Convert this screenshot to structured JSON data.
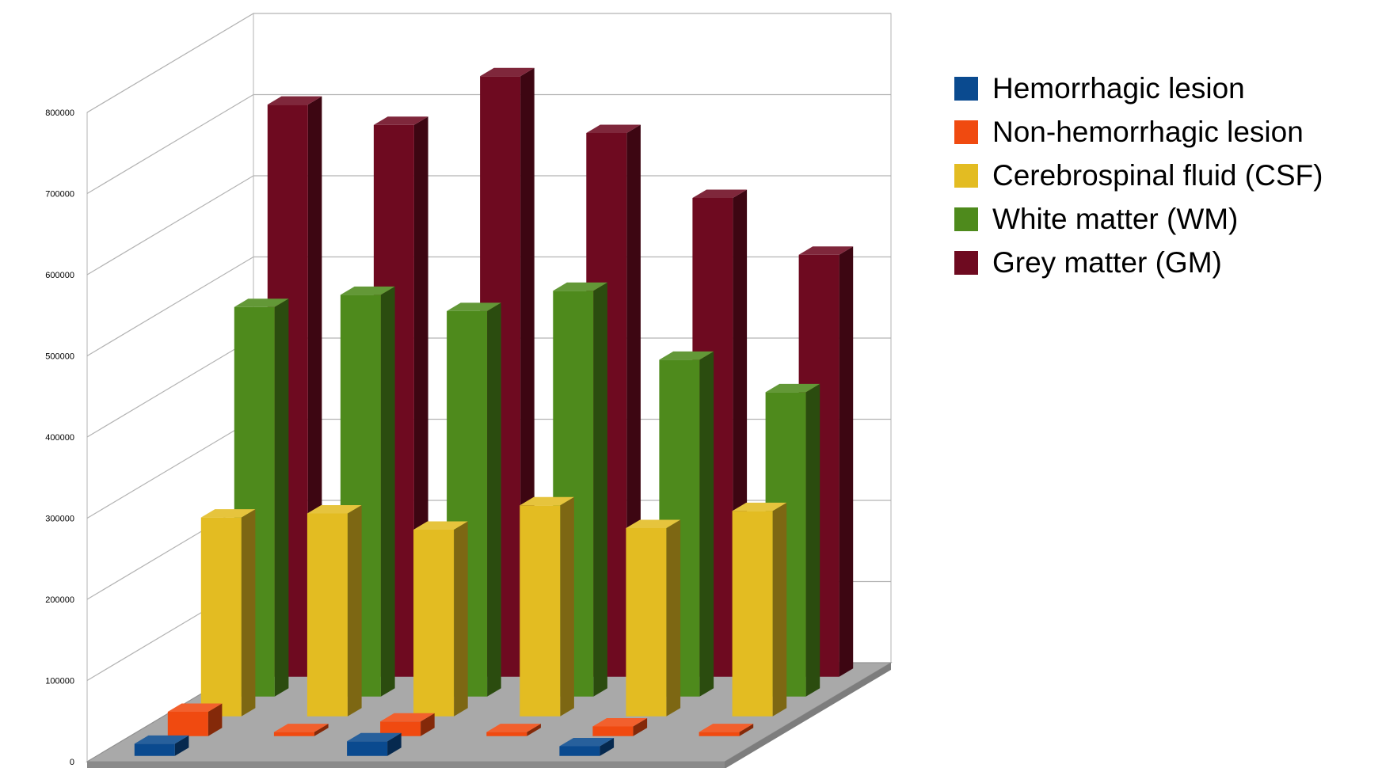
{
  "chart_data": {
    "type": "bar",
    "subtype": "3d-grouped-deep",
    "title": "",
    "xlabel": "",
    "ylabel": "",
    "ylim": [
      0,
      800000
    ],
    "yticks": [
      0,
      100000,
      200000,
      300000,
      400000,
      500000,
      600000,
      700000,
      800000
    ],
    "ytick_labels": [
      "0",
      "100000",
      "200000",
      "300000",
      "400000",
      "500000",
      "600000",
      "700000",
      "800000"
    ],
    "grid": true,
    "legend_position": "right",
    "categories": [
      "",
      "",
      "",
      "",
      "",
      ""
    ],
    "series": [
      {
        "name": "Hemorrhagic lesion",
        "color": "#0a4a8f",
        "values": [
          15000,
          null,
          18000,
          null,
          12000,
          null
        ]
      },
      {
        "name": "Non-hemorrhagic lesion",
        "color": "#f04a10",
        "values": [
          30000,
          5000,
          18000,
          5000,
          12000,
          5000
        ]
      },
      {
        "name": "Cerebrospinal fluid (CSF)",
        "color": "#e3bc22",
        "values": [
          245000,
          250000,
          230000,
          260000,
          232000,
          253000
        ]
      },
      {
        "name": "White matter (WM)",
        "color": "#4e8a1c",
        "values": [
          480000,
          495000,
          475000,
          500000,
          415000,
          375000
        ]
      },
      {
        "name": "Grey matter (GM)",
        "color": "#6e0a20",
        "values": [
          705000,
          680000,
          740000,
          670000,
          590000,
          520000
        ]
      }
    ]
  }
}
